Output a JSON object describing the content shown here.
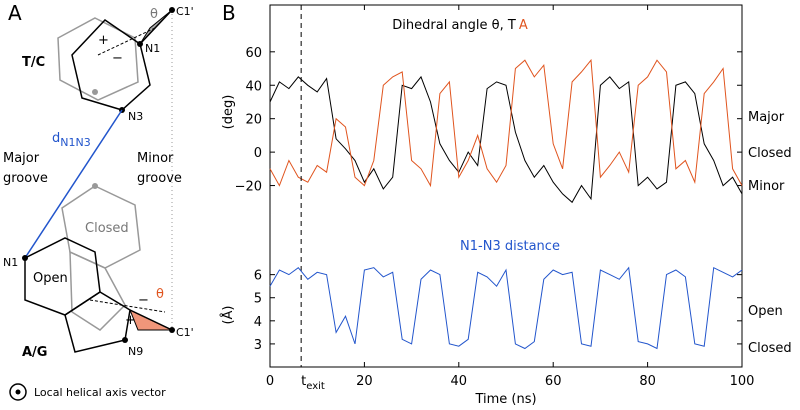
{
  "panel_a": {
    "label": "A",
    "theta_top": "θ",
    "c1_top": "C1'",
    "n1_top": "N1",
    "tc": "T/C",
    "n3": "N3",
    "plus_top": "+",
    "minus_top": "−",
    "distance": "d",
    "distance_sub": "N1N3",
    "major_groove": [
      "Major",
      "groove"
    ],
    "minor_groove": [
      "Minor",
      "groove"
    ],
    "closed": "Closed",
    "open": "Open",
    "n1_bottom": "N1",
    "minus_bottom": "−",
    "plus_bottom": "+",
    "theta_bottom": "θ",
    "c1_bottom": "C1'",
    "n9": "N9",
    "ag": "A/G",
    "axis_legend": "Local helical axis vector"
  },
  "panel_b_label": "B",
  "chart_data": [
    {
      "type": "line",
      "title": "Dihedral angle θ, ",
      "ylabel": "(deg)",
      "x": [
        0,
        2,
        4,
        6,
        8,
        10,
        12,
        14,
        16,
        18,
        20,
        22,
        24,
        26,
        28,
        30,
        32,
        34,
        36,
        38,
        40,
        42,
        44,
        46,
        48,
        50,
        52,
        54,
        56,
        58,
        60,
        62,
        64,
        66,
        68,
        70,
        72,
        74,
        76,
        78,
        80,
        82,
        84,
        86,
        88,
        90,
        92,
        94,
        96,
        98,
        100
      ],
      "xlim": [
        0,
        100
      ],
      "ylim": [
        -40,
        88
      ],
      "yticks": [
        {
          "value": -20,
          "label": "−20"
        },
        0,
        20,
        40,
        60
      ],
      "series": [
        {
          "name": "T",
          "color": "#000000",
          "values": [
            30,
            42,
            38,
            45,
            40,
            36,
            44,
            8,
            2,
            -5,
            -18,
            -10,
            -22,
            -15,
            40,
            38,
            45,
            30,
            5,
            -5,
            -12,
            0,
            -8,
            38,
            42,
            40,
            12,
            -5,
            -15,
            -8,
            -18,
            -25,
            -30,
            -20,
            -28,
            40,
            45,
            38,
            42,
            -20,
            -15,
            -22,
            -18,
            40,
            42,
            35,
            5,
            -5,
            -20,
            -15,
            -25
          ]
        },
        {
          "name": "A",
          "color": "#e0541e",
          "values": [
            -10,
            -20,
            -5,
            -15,
            -18,
            -8,
            -12,
            20,
            15,
            -15,
            -20,
            -5,
            40,
            45,
            48,
            -5,
            -10,
            -20,
            35,
            42,
            -15,
            -5,
            10,
            -10,
            -18,
            -8,
            50,
            55,
            45,
            52,
            5,
            -10,
            42,
            48,
            55,
            -15,
            -8,
            0,
            -12,
            40,
            45,
            55,
            48,
            -10,
            -5,
            -18,
            35,
            42,
            50,
            -10,
            -20
          ]
        }
      ],
      "state_labels": [
        "Major",
        "Closed",
        "Minor"
      ]
    },
    {
      "type": "line",
      "title": "N1-N3 distance",
      "title_color": "#2255cc",
      "ylabel": "(Å)",
      "xlabel": "Time (ns)",
      "x": [
        0,
        2,
        4,
        6,
        8,
        10,
        12,
        14,
        16,
        18,
        20,
        22,
        24,
        26,
        28,
        30,
        32,
        34,
        36,
        38,
        40,
        42,
        44,
        46,
        48,
        50,
        52,
        54,
        56,
        58,
        60,
        62,
        64,
        66,
        68,
        70,
        72,
        74,
        76,
        78,
        80,
        82,
        84,
        86,
        88,
        90,
        92,
        94,
        96,
        98,
        100
      ],
      "xlim": [
        0,
        100
      ],
      "ylim": [
        2,
        7.5
      ],
      "xticks": [
        0,
        20,
        40,
        60,
        80,
        100
      ],
      "yticks": [
        3,
        4,
        5,
        6
      ],
      "series": [
        {
          "color": "#2255cc",
          "values": [
            5.5,
            6.2,
            6.0,
            6.3,
            5.8,
            6.1,
            6.0,
            3.5,
            4.2,
            3.0,
            6.2,
            6.3,
            5.9,
            6.1,
            3.2,
            3.0,
            5.8,
            6.2,
            6.0,
            3.0,
            2.9,
            3.2,
            6.1,
            5.9,
            5.5,
            6.2,
            3.0,
            2.8,
            3.1,
            5.8,
            6.2,
            6.0,
            6.1,
            3.0,
            2.9,
            6.2,
            6.0,
            5.8,
            6.3,
            3.1,
            3.0,
            2.8,
            6.0,
            6.2,
            5.9,
            3.0,
            2.9,
            6.3,
            6.1,
            5.9,
            6.2
          ]
        }
      ],
      "vline": {
        "x": 6.6,
        "label": "t",
        "label_sub": "exit"
      },
      "state_labels": [
        "Open",
        "Closed"
      ]
    }
  ]
}
